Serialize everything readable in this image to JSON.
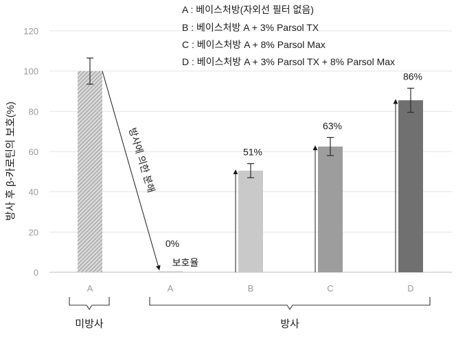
{
  "chart_data": {
    "type": "bar",
    "ylabel": "방사 후 β-카로틴의 보호(%)",
    "ylim": [
      0,
      120
    ],
    "yticks": [
      0,
      20,
      40,
      60,
      80,
      100,
      120
    ],
    "grid": true,
    "categories": [
      "A",
      "A",
      "B",
      "C",
      "D"
    ],
    "values": [
      100,
      0.5,
      50.5,
      62.5,
      85.5
    ],
    "errors": [
      6.5,
      0,
      3.5,
      4.5,
      6
    ],
    "data_labels": [
      "",
      "0%",
      "51%",
      "63%",
      "86%"
    ],
    "bar_colors": [
      "hatched-gray",
      "#c9c9c9",
      "#c9c9c9",
      "#9d9d9d",
      "#707070"
    ],
    "groups": [
      {
        "label": "미방사",
        "categories": [
          0
        ]
      },
      {
        "label": "방사",
        "categories": [
          1,
          2,
          3,
          4
        ]
      }
    ],
    "annotations": {
      "decay_label": "방사에 의한 분해",
      "protection_label": "보호율"
    },
    "legend": [
      "A : 베이스처방(자외선 필터 없음)",
      "B : 베이스처방 A + 3% Parsol TX",
      "C : 베이스처방 A + 8% Parsol Max",
      "D : 베이스처방 A + 3% Parsol TX + 8% Parsol Max"
    ],
    "legend_position": "top-right"
  }
}
